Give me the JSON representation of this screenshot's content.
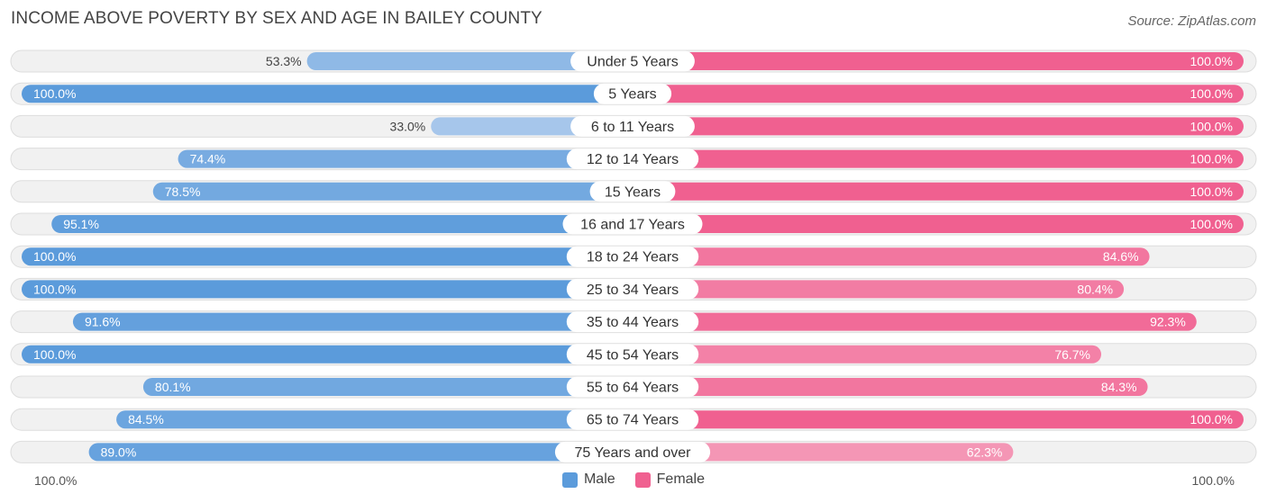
{
  "title": "INCOME ABOVE POVERTY BY SEX AND AGE IN BAILEY COUNTY",
  "source": "Source: ZipAtlas.com",
  "colors": {
    "male_strong": "#5b9bdb",
    "male_light": "#a9c8ec",
    "female_strong": "#f06090",
    "female_light": "#f5a0bc",
    "row_bg": "#f1f1f1",
    "row_border": "#dddddd"
  },
  "axis": {
    "left_label": "100.0%",
    "right_label": "100.0%"
  },
  "legend": {
    "male_label": "Male",
    "female_label": "Female"
  },
  "chart_data": {
    "type": "bar",
    "orientation": "horizontal-diverging",
    "title": "INCOME ABOVE POVERTY BY SEX AND AGE IN BAILEY COUNTY",
    "xlim": [
      -100,
      100
    ],
    "categories": [
      "Under 5 Years",
      "5 Years",
      "6 to 11 Years",
      "12 to 14 Years",
      "15 Years",
      "16 and 17 Years",
      "18 to 24 Years",
      "25 to 34 Years",
      "35 to 44 Years",
      "45 to 54 Years",
      "55 to 64 Years",
      "65 to 74 Years",
      "75 Years and over"
    ],
    "series": [
      {
        "name": "Male",
        "values": [
          53.3,
          100.0,
          33.0,
          74.4,
          78.5,
          95.1,
          100.0,
          100.0,
          91.6,
          100.0,
          80.1,
          84.5,
          89.0
        ],
        "labels": [
          "53.3%",
          "100.0%",
          "33.0%",
          "74.4%",
          "78.5%",
          "95.1%",
          "100.0%",
          "100.0%",
          "91.6%",
          "100.0%",
          "80.1%",
          "84.5%",
          "89.0%"
        ]
      },
      {
        "name": "Female",
        "values": [
          100.0,
          100.0,
          100.0,
          100.0,
          100.0,
          100.0,
          84.6,
          80.4,
          92.3,
          76.7,
          84.3,
          100.0,
          62.3
        ],
        "labels": [
          "100.0%",
          "100.0%",
          "100.0%",
          "100.0%",
          "100.0%",
          "100.0%",
          "84.6%",
          "80.4%",
          "92.3%",
          "76.7%",
          "84.3%",
          "100.0%",
          "62.3%"
        ]
      }
    ]
  }
}
